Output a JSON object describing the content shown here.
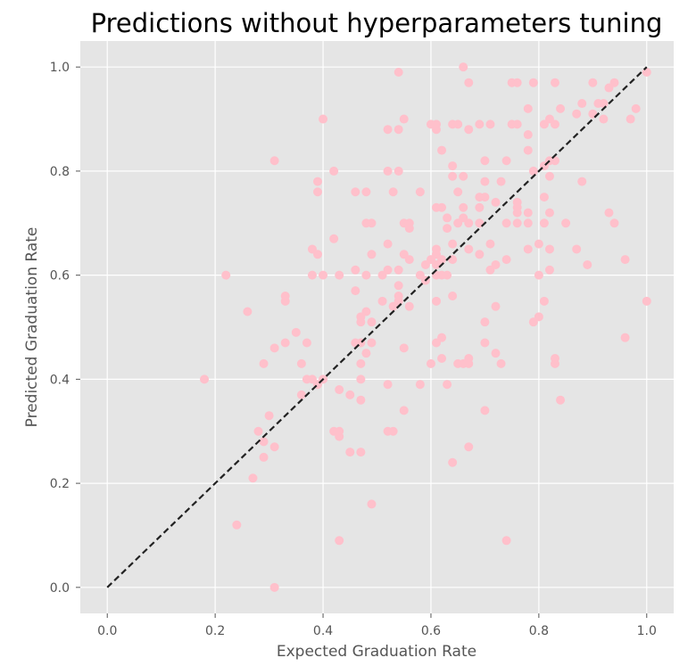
{
  "chart_data": {
    "type": "scatter",
    "title": "Predictions without hyperparameters tuning",
    "xlabel": "Expected Graduation Rate",
    "ylabel": "Predicted Graduation Rate",
    "xlim": [
      -0.05,
      1.05
    ],
    "ylim": [
      -0.05,
      1.05
    ],
    "xticks": [
      "0.0",
      "0.2",
      "0.4",
      "0.6",
      "0.8",
      "1.0"
    ],
    "yticks": [
      "0.0",
      "0.2",
      "0.4",
      "0.6",
      "0.8",
      "1.0"
    ],
    "grid": true,
    "point_color": "#ffc0cb",
    "reference_line": {
      "x": [
        0,
        1
      ],
      "y": [
        0,
        1
      ],
      "color": "#222222",
      "style": "dashed"
    },
    "points": [
      [
        0.18,
        0.4
      ],
      [
        0.22,
        0.6
      ],
      [
        0.24,
        0.12
      ],
      [
        0.26,
        0.53
      ],
      [
        0.27,
        0.21
      ],
      [
        0.28,
        0.3
      ],
      [
        0.29,
        0.43
      ],
      [
        0.29,
        0.28
      ],
      [
        0.29,
        0.25
      ],
      [
        0.3,
        0.33
      ],
      [
        0.31,
        0.82
      ],
      [
        0.31,
        0.46
      ],
      [
        0.31,
        0.27
      ],
      [
        0.31,
        0.0
      ],
      [
        0.33,
        0.56
      ],
      [
        0.33,
        0.55
      ],
      [
        0.33,
        0.47
      ],
      [
        0.35,
        0.49
      ],
      [
        0.36,
        0.43
      ],
      [
        0.36,
        0.37
      ],
      [
        0.37,
        0.47
      ],
      [
        0.37,
        0.4
      ],
      [
        0.38,
        0.65
      ],
      [
        0.38,
        0.6
      ],
      [
        0.38,
        0.4
      ],
      [
        0.39,
        0.78
      ],
      [
        0.39,
        0.76
      ],
      [
        0.39,
        0.64
      ],
      [
        0.39,
        0.39
      ],
      [
        0.4,
        0.9
      ],
      [
        0.4,
        0.6
      ],
      [
        0.4,
        0.4
      ],
      [
        0.42,
        0.8
      ],
      [
        0.42,
        0.67
      ],
      [
        0.42,
        0.3
      ],
      [
        0.43,
        0.6
      ],
      [
        0.43,
        0.38
      ],
      [
        0.43,
        0.3
      ],
      [
        0.43,
        0.29
      ],
      [
        0.43,
        0.09
      ],
      [
        0.45,
        0.37
      ],
      [
        0.45,
        0.26
      ],
      [
        0.46,
        0.76
      ],
      [
        0.46,
        0.61
      ],
      [
        0.46,
        0.57
      ],
      [
        0.46,
        0.47
      ],
      [
        0.47,
        0.52
      ],
      [
        0.47,
        0.51
      ],
      [
        0.47,
        0.47
      ],
      [
        0.47,
        0.43
      ],
      [
        0.47,
        0.4
      ],
      [
        0.47,
        0.36
      ],
      [
        0.47,
        0.26
      ],
      [
        0.48,
        0.76
      ],
      [
        0.48,
        0.7
      ],
      [
        0.48,
        0.6
      ],
      [
        0.48,
        0.53
      ],
      [
        0.48,
        0.45
      ],
      [
        0.49,
        0.7
      ],
      [
        0.49,
        0.64
      ],
      [
        0.49,
        0.51
      ],
      [
        0.49,
        0.47
      ],
      [
        0.49,
        0.16
      ],
      [
        0.51,
        0.6
      ],
      [
        0.51,
        0.55
      ],
      [
        0.52,
        0.88
      ],
      [
        0.52,
        0.8
      ],
      [
        0.52,
        0.66
      ],
      [
        0.52,
        0.61
      ],
      [
        0.52,
        0.39
      ],
      [
        0.52,
        0.3
      ],
      [
        0.53,
        0.76
      ],
      [
        0.53,
        0.54
      ],
      [
        0.53,
        0.3
      ],
      [
        0.54,
        0.99
      ],
      [
        0.54,
        0.88
      ],
      [
        0.54,
        0.8
      ],
      [
        0.54,
        0.61
      ],
      [
        0.54,
        0.58
      ],
      [
        0.54,
        0.56
      ],
      [
        0.54,
        0.55
      ],
      [
        0.55,
        0.9
      ],
      [
        0.55,
        0.7
      ],
      [
        0.55,
        0.64
      ],
      [
        0.55,
        0.46
      ],
      [
        0.55,
        0.34
      ],
      [
        0.56,
        0.7
      ],
      [
        0.56,
        0.69
      ],
      [
        0.56,
        0.63
      ],
      [
        0.56,
        0.54
      ],
      [
        0.58,
        0.76
      ],
      [
        0.58,
        0.6
      ],
      [
        0.58,
        0.39
      ],
      [
        0.59,
        0.62
      ],
      [
        0.59,
        0.59
      ],
      [
        0.6,
        0.89
      ],
      [
        0.6,
        0.63
      ],
      [
        0.6,
        0.43
      ],
      [
        0.61,
        0.89
      ],
      [
        0.61,
        0.88
      ],
      [
        0.61,
        0.73
      ],
      [
        0.61,
        0.65
      ],
      [
        0.61,
        0.64
      ],
      [
        0.61,
        0.62
      ],
      [
        0.61,
        0.6
      ],
      [
        0.61,
        0.55
      ],
      [
        0.61,
        0.47
      ],
      [
        0.62,
        0.84
      ],
      [
        0.62,
        0.73
      ],
      [
        0.62,
        0.63
      ],
      [
        0.62,
        0.6
      ],
      [
        0.62,
        0.48
      ],
      [
        0.62,
        0.44
      ],
      [
        0.63,
        0.71
      ],
      [
        0.63,
        0.69
      ],
      [
        0.63,
        0.6
      ],
      [
        0.63,
        0.39
      ],
      [
        0.64,
        0.89
      ],
      [
        0.64,
        0.81
      ],
      [
        0.64,
        0.79
      ],
      [
        0.64,
        0.66
      ],
      [
        0.64,
        0.63
      ],
      [
        0.64,
        0.56
      ],
      [
        0.64,
        0.24
      ],
      [
        0.65,
        0.89
      ],
      [
        0.65,
        0.76
      ],
      [
        0.65,
        0.7
      ],
      [
        0.65,
        0.43
      ],
      [
        0.66,
        1.0
      ],
      [
        0.66,
        0.79
      ],
      [
        0.66,
        0.73
      ],
      [
        0.66,
        0.71
      ],
      [
        0.66,
        0.43
      ],
      [
        0.67,
        0.97
      ],
      [
        0.67,
        0.88
      ],
      [
        0.67,
        0.7
      ],
      [
        0.67,
        0.65
      ],
      [
        0.67,
        0.44
      ],
      [
        0.67,
        0.43
      ],
      [
        0.67,
        0.27
      ],
      [
        0.69,
        0.89
      ],
      [
        0.69,
        0.75
      ],
      [
        0.69,
        0.73
      ],
      [
        0.69,
        0.7
      ],
      [
        0.69,
        0.64
      ],
      [
        0.7,
        0.82
      ],
      [
        0.7,
        0.78
      ],
      [
        0.7,
        0.75
      ],
      [
        0.7,
        0.51
      ],
      [
        0.7,
        0.47
      ],
      [
        0.7,
        0.34
      ],
      [
        0.71,
        0.89
      ],
      [
        0.71,
        0.66
      ],
      [
        0.71,
        0.61
      ],
      [
        0.72,
        0.74
      ],
      [
        0.72,
        0.62
      ],
      [
        0.72,
        0.54
      ],
      [
        0.72,
        0.45
      ],
      [
        0.73,
        0.78
      ],
      [
        0.73,
        0.43
      ],
      [
        0.74,
        0.82
      ],
      [
        0.74,
        0.7
      ],
      [
        0.74,
        0.63
      ],
      [
        0.74,
        0.09
      ],
      [
        0.75,
        0.97
      ],
      [
        0.75,
        0.89
      ],
      [
        0.76,
        0.97
      ],
      [
        0.76,
        0.89
      ],
      [
        0.76,
        0.74
      ],
      [
        0.76,
        0.73
      ],
      [
        0.76,
        0.72
      ],
      [
        0.76,
        0.7
      ],
      [
        0.78,
        0.92
      ],
      [
        0.78,
        0.87
      ],
      [
        0.78,
        0.84
      ],
      [
        0.78,
        0.72
      ],
      [
        0.78,
        0.7
      ],
      [
        0.78,
        0.65
      ],
      [
        0.79,
        0.97
      ],
      [
        0.79,
        0.8
      ],
      [
        0.79,
        0.51
      ],
      [
        0.8,
        0.66
      ],
      [
        0.8,
        0.6
      ],
      [
        0.8,
        0.52
      ],
      [
        0.81,
        0.89
      ],
      [
        0.81,
        0.81
      ],
      [
        0.81,
        0.75
      ],
      [
        0.81,
        0.7
      ],
      [
        0.81,
        0.55
      ],
      [
        0.82,
        0.9
      ],
      [
        0.82,
        0.82
      ],
      [
        0.82,
        0.79
      ],
      [
        0.82,
        0.72
      ],
      [
        0.82,
        0.65
      ],
      [
        0.82,
        0.61
      ],
      [
        0.83,
        0.97
      ],
      [
        0.83,
        0.89
      ],
      [
        0.83,
        0.82
      ],
      [
        0.83,
        0.44
      ],
      [
        0.83,
        0.43
      ],
      [
        0.84,
        0.92
      ],
      [
        0.84,
        0.36
      ],
      [
        0.85,
        0.7
      ],
      [
        0.87,
        0.91
      ],
      [
        0.87,
        0.65
      ],
      [
        0.88,
        0.93
      ],
      [
        0.88,
        0.78
      ],
      [
        0.89,
        0.62
      ],
      [
        0.9,
        0.97
      ],
      [
        0.9,
        0.91
      ],
      [
        0.91,
        0.93
      ],
      [
        0.92,
        0.9
      ],
      [
        0.92,
        0.93
      ],
      [
        0.93,
        0.96
      ],
      [
        0.93,
        0.72
      ],
      [
        0.94,
        0.97
      ],
      [
        0.94,
        0.7
      ],
      [
        0.96,
        0.63
      ],
      [
        0.96,
        0.48
      ],
      [
        0.97,
        0.9
      ],
      [
        0.98,
        0.92
      ],
      [
        1.0,
        0.99
      ],
      [
        1.0,
        0.55
      ]
    ]
  }
}
